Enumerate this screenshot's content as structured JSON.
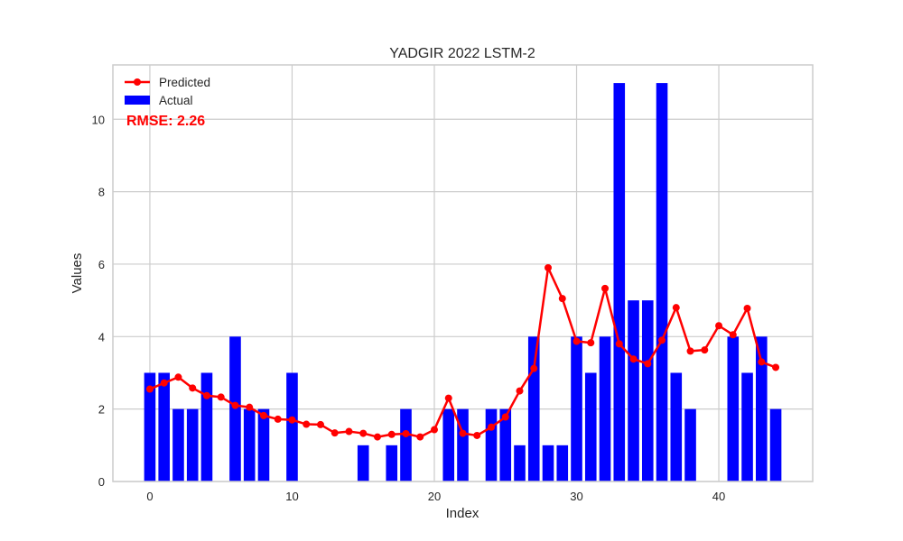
{
  "chart_data": {
    "type": "bar",
    "title": "YADGIR 2022 LSTM-2",
    "xlabel": "Index",
    "ylabel": "Values",
    "xlim": [
      -2.6,
      46.6
    ],
    "ylim": [
      0,
      11.5
    ],
    "xticks": [
      0,
      10,
      20,
      30,
      40
    ],
    "yticks": [
      0,
      2,
      4,
      6,
      8,
      10
    ],
    "grid": true,
    "legend_position": "top-left",
    "annotation": "RMSE: 2.26",
    "x": [
      0,
      1,
      2,
      3,
      4,
      5,
      6,
      7,
      8,
      9,
      10,
      11,
      12,
      13,
      14,
      15,
      16,
      17,
      18,
      19,
      20,
      21,
      22,
      23,
      24,
      25,
      26,
      27,
      28,
      29,
      30,
      31,
      32,
      33,
      34,
      35,
      36,
      37,
      38,
      39,
      40,
      41,
      42,
      43,
      44
    ],
    "series": [
      {
        "name": "Predicted",
        "kind": "line",
        "color": "#ff0000",
        "values": [
          2.55,
          2.72,
          2.88,
          2.58,
          2.37,
          2.33,
          2.1,
          2.05,
          1.82,
          1.72,
          1.7,
          1.58,
          1.57,
          1.34,
          1.38,
          1.33,
          1.23,
          1.3,
          1.32,
          1.23,
          1.43,
          2.3,
          1.33,
          1.27,
          1.5,
          1.78,
          2.5,
          3.12,
          5.9,
          5.05,
          3.87,
          3.83,
          5.33,
          3.8,
          3.38,
          3.25,
          3.9,
          4.8,
          3.6,
          3.63,
          4.3,
          4.05,
          4.78,
          3.3,
          3.15
        ]
      },
      {
        "name": "Actual",
        "kind": "bar",
        "color": "#0000ff",
        "values": [
          3,
          3,
          2,
          2,
          3,
          0,
          4,
          2,
          2,
          0,
          3,
          0,
          0,
          0,
          0,
          1,
          0,
          1,
          2,
          0,
          0,
          2,
          2,
          0,
          2,
          2,
          1,
          4,
          1,
          1,
          4,
          3,
          4,
          11,
          5,
          5,
          11,
          3,
          2,
          0,
          0,
          4,
          3,
          4,
          2
        ]
      }
    ]
  }
}
